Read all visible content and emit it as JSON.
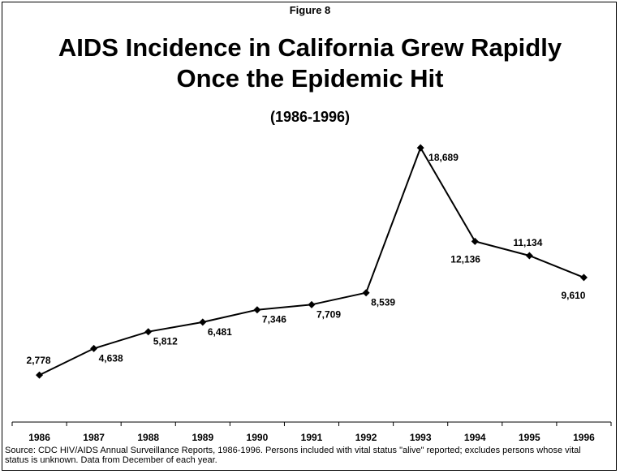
{
  "header": {
    "figure_label": "Figure 8",
    "title_line1": "AIDS Incidence in California Grew Rapidly",
    "title_line2": "Once the Epidemic Hit",
    "subtitle": "(1986-1996)"
  },
  "chart_data": {
    "type": "line",
    "title": "AIDS Incidence in California Grew Rapidly Once the Epidemic Hit",
    "subtitle": "(1986-1996)",
    "categories": [
      "1986",
      "1987",
      "1988",
      "1989",
      "1990",
      "1991",
      "1992",
      "1993",
      "1994",
      "1995",
      "1996"
    ],
    "values": [
      2778,
      4638,
      5812,
      6481,
      7346,
      7709,
      8539,
      18689,
      12136,
      11134,
      9610
    ],
    "data_labels": [
      "2,778",
      "4,638",
      "5,812",
      "6,481",
      "7,346",
      "7,709",
      "8,539",
      "18,689",
      "12,136",
      "11,134",
      "9,610"
    ],
    "series_color": "#000000",
    "marker": "diamond",
    "grid": false,
    "legend": "none",
    "ylim": [
      0,
      20000
    ]
  },
  "footer": {
    "source": "Source: CDC HIV/AIDS Annual Surveillance Reports, 1986-1996. Persons included with vital status \"alive\" reported; excludes persons whose vital status is unknown. Data from December of each year."
  }
}
